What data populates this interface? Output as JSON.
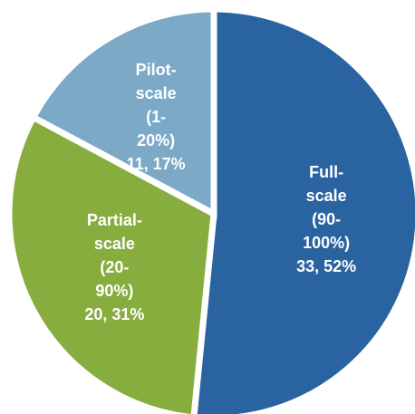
{
  "chart_data": {
    "type": "pie",
    "categories": [
      "Full-scale (90-100%)",
      "Partial-scale (20-90%)",
      "Pilot-scale (1-20%)"
    ],
    "values": [
      33,
      20,
      11
    ],
    "value_labels": [
      "33, 52%",
      "20, 31%",
      "11, 17%"
    ],
    "colors": [
      "#2964a0",
      "#88ad3f",
      "#7ba9c6"
    ]
  }
}
